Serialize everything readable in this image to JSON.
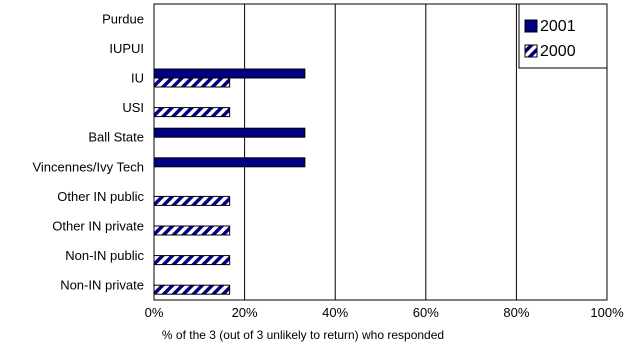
{
  "chart_data": {
    "type": "bar",
    "orientation": "horizontal",
    "categories": [
      "Purdue",
      "IUPUI",
      "IU",
      "USI",
      "Ball State",
      "Vincennes/Ivy Tech",
      "Other IN public",
      "Other IN private",
      "Non-IN public",
      "Non-IN private"
    ],
    "series": [
      {
        "name": "2001",
        "values": [
          0,
          0,
          33.3,
          0,
          33.3,
          33.3,
          0,
          0,
          0,
          0
        ],
        "color": "#000080",
        "pattern": "solid"
      },
      {
        "name": "2000",
        "values": [
          0,
          0,
          16.7,
          16.7,
          0,
          0,
          16.7,
          16.7,
          16.7,
          16.7
        ],
        "color": "#000080",
        "pattern": "diagonal-stripes"
      }
    ],
    "xlabel": "% of the 3 (out of 3 unlikely to return) who responded",
    "ylabel": "",
    "title": "",
    "xlim": [
      0,
      100
    ],
    "xticks": [
      "0%",
      "20%",
      "40%",
      "60%",
      "80%",
      "100%"
    ],
    "xtick_values": [
      0,
      20,
      40,
      60,
      80,
      100
    ],
    "grid": "vertical",
    "legend_position": "top-right"
  }
}
